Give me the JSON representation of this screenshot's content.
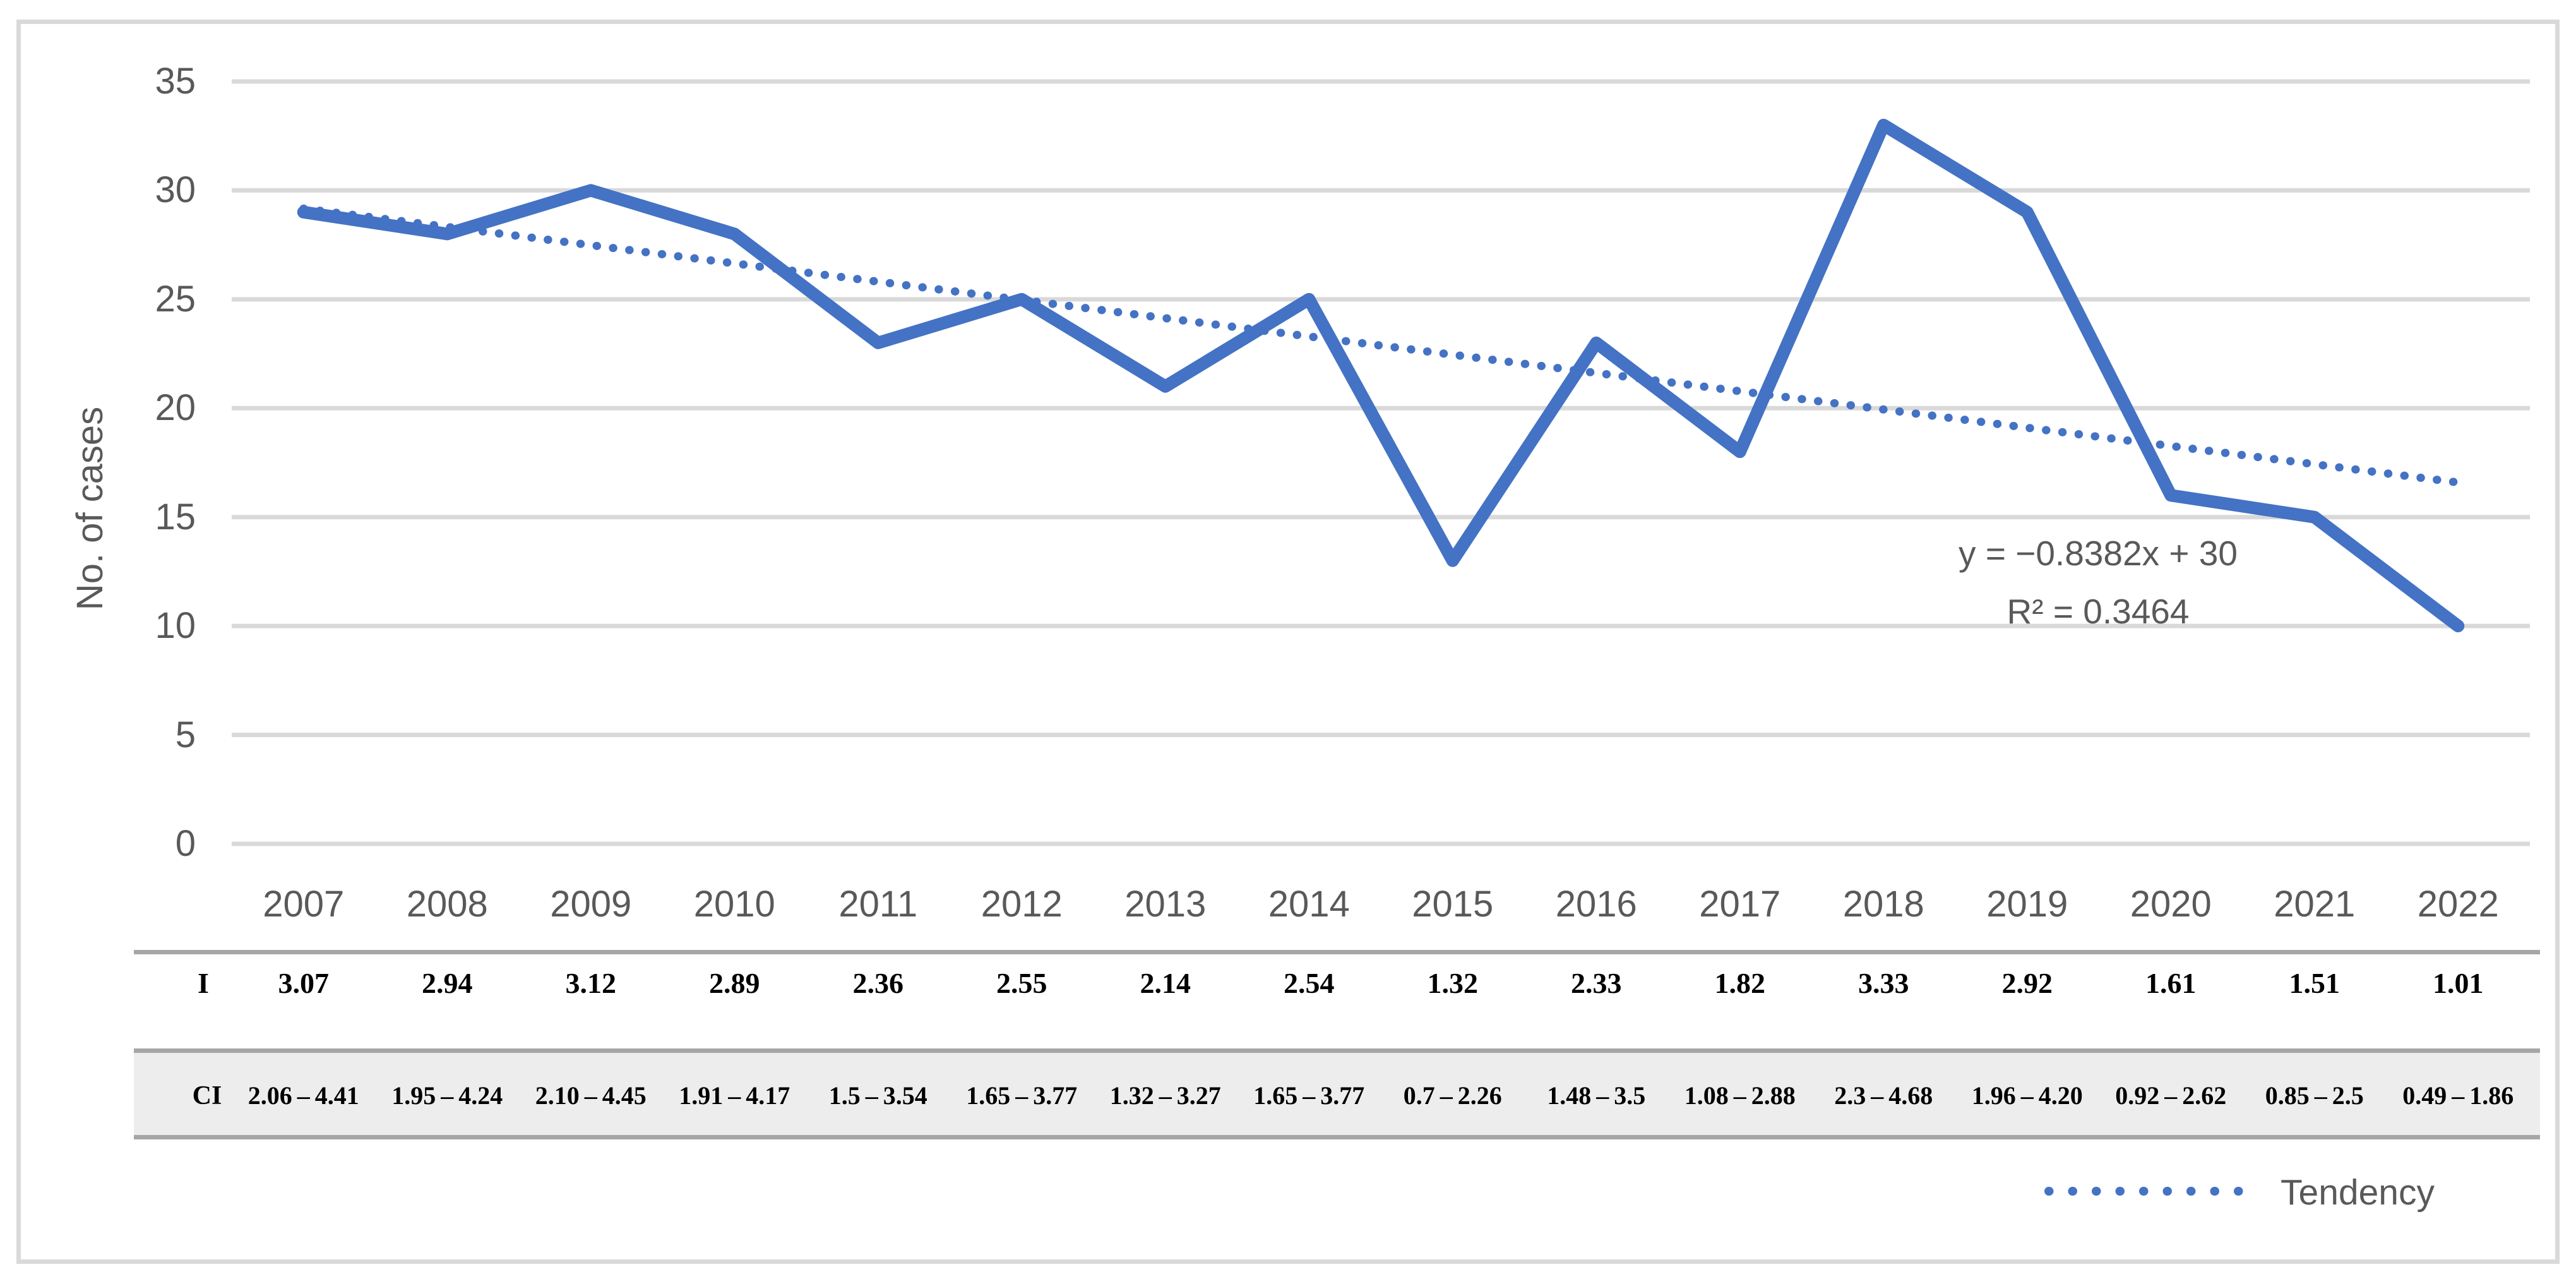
{
  "chart_data": {
    "type": "line",
    "title": "",
    "xlabel": "",
    "ylabel": "No. of cases",
    "categories": [
      "2007",
      "2008",
      "2009",
      "2010",
      "2011",
      "2012",
      "2013",
      "2014",
      "2015",
      "2016",
      "2017",
      "2018",
      "2019",
      "2020",
      "2021",
      "2022"
    ],
    "series": [
      {
        "name": "No. of cases",
        "values": [
          29,
          28,
          30,
          28,
          23,
          25,
          21,
          25,
          13,
          23,
          18,
          33,
          29,
          16,
          15,
          10
        ]
      }
    ],
    "trendline": {
      "name": "Tendency",
      "equation": "y = −0.8382x + 30",
      "r_squared": "R² = 0.3464",
      "slope": -0.8382,
      "intercept": 30
    },
    "ylim": [
      0,
      35
    ],
    "yticks": [
      0,
      5,
      10,
      15,
      20,
      25,
      30,
      35
    ],
    "grid": "horizontal",
    "legend_position": "bottom-right",
    "table_rows": [
      {
        "label": "I",
        "values": [
          "3.07",
          "2.94",
          "3.12",
          "2.89",
          "2.36",
          "2.55",
          "2.14",
          "2.54",
          "1.32",
          "2.33",
          "1.82",
          "3.33",
          "2.92",
          "1.61",
          "1.51",
          "1.01"
        ]
      },
      {
        "label": "CI",
        "values": [
          "2.06 – 4.41",
          "1.95 – 4.24",
          "2.10 – 4.45",
          "1.91 – 4.17",
          "1.5 – 3.54",
          "1.65 – 3.77",
          "1.32 – 3.27",
          "1.65 – 3.77",
          "0.7 – 2.26",
          "1.48 – 3.5",
          "1.08 – 2.88",
          "2.3 – 4.68",
          "1.96 – 4.20",
          "0.92 – 2.62",
          "0.85 – 2.5",
          "0.49 – 1.86"
        ]
      }
    ],
    "colors": {
      "series": "#4472C4",
      "trend": "#4472C4",
      "gridline": "#D9D9D9",
      "axis_text": "#595959",
      "table_text": "#000000",
      "ci_row_bg": "#EDEDED",
      "table_rule": "#A6A6A6",
      "border": "#D9D9D9"
    }
  }
}
